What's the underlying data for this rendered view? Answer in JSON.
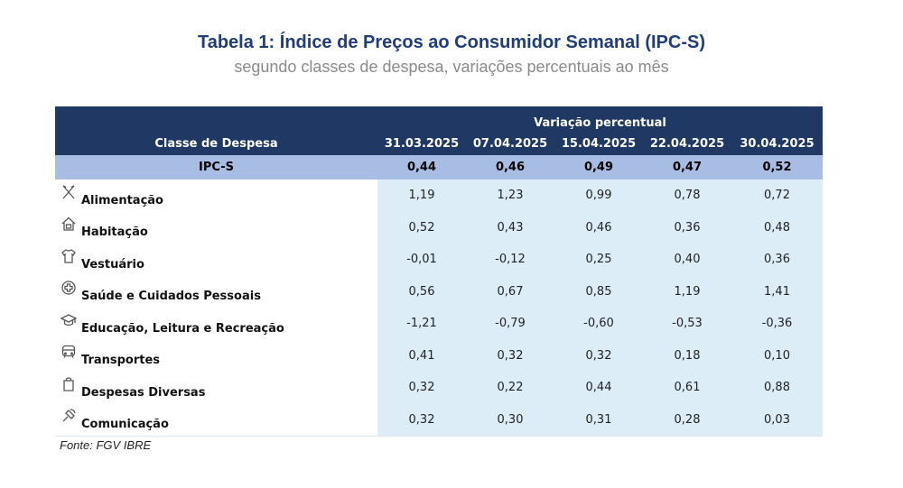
{
  "title": {
    "bold": "Tabela 1",
    "rest": "Índice de Preços ao Consumidor Semanal (IPC-S)"
  },
  "subtitle": "segundo classes de despesa, variações percentuais ao mês",
  "table": {
    "group_header": "Variação percentual",
    "category_header": "Classe de Despesa",
    "dates": [
      "31.03.2025",
      "07.04.2025",
      "15.04.2025",
      "22.04.2025",
      "30.04.2025"
    ],
    "total": {
      "label": "IPC-S",
      "values": [
        "0,44",
        "0,46",
        "0,49",
        "0,47",
        "0,52"
      ]
    },
    "rows": [
      {
        "label": "Alimentação",
        "icon": "utensils-icon",
        "values": [
          "1,19",
          "1,23",
          "0,99",
          "0,78",
          "0,72"
        ]
      },
      {
        "label": "Habitação",
        "icon": "house-icon",
        "values": [
          "0,52",
          "0,43",
          "0,46",
          "0,36",
          "0,48"
        ]
      },
      {
        "label": "Vestuário",
        "icon": "shirt-icon",
        "values": [
          "-0,01",
          "-0,12",
          "0,25",
          "0,40",
          "0,36"
        ]
      },
      {
        "label": "Saúde e Cuidados Pessoais",
        "icon": "health-cross-icon",
        "values": [
          "0,56",
          "0,67",
          "0,85",
          "1,19",
          "1,41"
        ]
      },
      {
        "label": "Educação, Leitura e Recreação",
        "icon": "graduation-cap-icon",
        "values": [
          "-1,21",
          "-0,79",
          "-0,60",
          "-0,53",
          "-0,36"
        ]
      },
      {
        "label": "Transportes",
        "icon": "bus-icon",
        "values": [
          "0,41",
          "0,32",
          "0,32",
          "0,18",
          "0,10"
        ]
      },
      {
        "label": "Despesas Diversas",
        "icon": "bag-icon",
        "values": [
          "0,32",
          "0,22",
          "0,44",
          "0,61",
          "0,88"
        ]
      },
      {
        "label": "Comunicação",
        "icon": "satellite-icon",
        "values": [
          "0,32",
          "0,30",
          "0,31",
          "0,28",
          "0,03"
        ]
      }
    ]
  },
  "source": "Fonte: FGV IBRE",
  "colors": {
    "header_bg": "#1f3864",
    "total_bg": "#a8bde3",
    "value_bg": "#dcedf8",
    "title": "#1f3d7a"
  }
}
